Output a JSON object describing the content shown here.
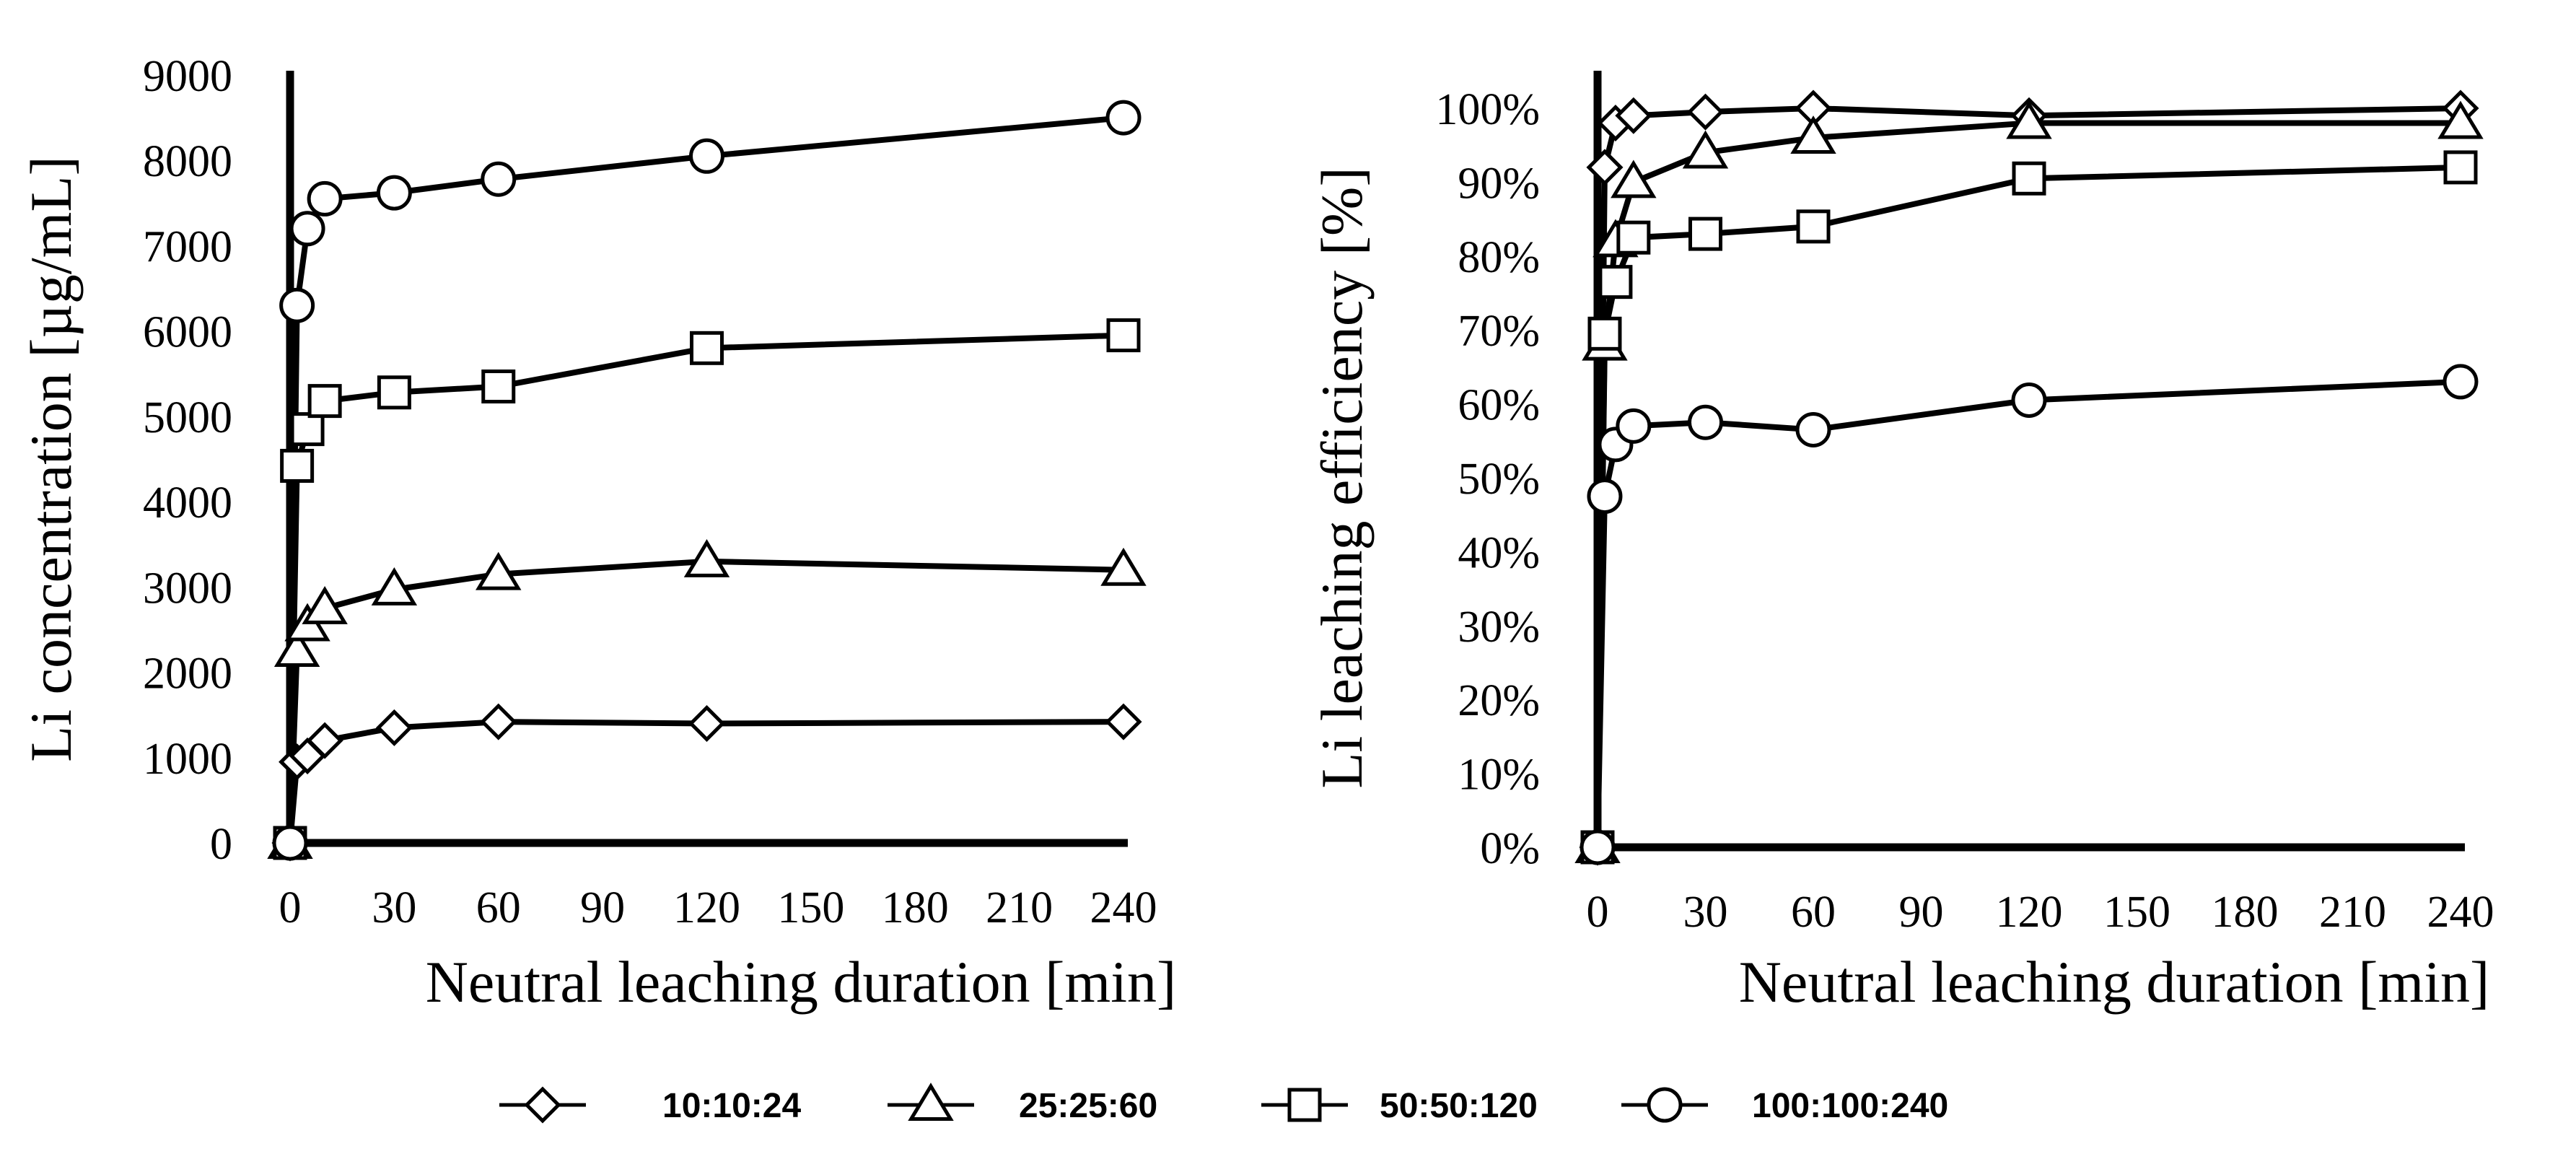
{
  "chart_data": [
    {
      "type": "line",
      "ylabel": "Li concentration [µg/mL]",
      "xlabel": "Neutral leaching duration [min]",
      "xlim": [
        0,
        240
      ],
      "ylim": [
        0,
        9000
      ],
      "xticks": [
        0,
        30,
        60,
        90,
        120,
        150,
        180,
        210,
        240
      ],
      "yticks": [
        0,
        1000,
        2000,
        3000,
        4000,
        5000,
        6000,
        7000,
        8000,
        9000
      ],
      "ytick_labels": [
        "0",
        "1000",
        "2000",
        "3000",
        "4000",
        "5000",
        "6000",
        "7000",
        "8000",
        "9000"
      ],
      "x": [
        0,
        2,
        5,
        10,
        30,
        60,
        120,
        240
      ],
      "series": [
        {
          "name": "10:10:24",
          "marker": "diamond",
          "values": [
            0,
            950,
            1020,
            1200,
            1350,
            1420,
            1400,
            1420
          ]
        },
        {
          "name": "25:25:60",
          "marker": "triangle",
          "values": [
            0,
            2250,
            2550,
            2750,
            2970,
            3150,
            3300,
            3200
          ]
        },
        {
          "name": "50:50:120",
          "marker": "square",
          "values": [
            0,
            4420,
            4850,
            5180,
            5280,
            5350,
            5800,
            5950
          ]
        },
        {
          "name": "100:100:240",
          "marker": "circle",
          "values": [
            0,
            6300,
            7200,
            7550,
            7620,
            7780,
            8050,
            8500
          ]
        }
      ]
    },
    {
      "type": "line",
      "ylabel": "Li leaching efficiency [%]",
      "xlabel": "Neutral leaching duration [min]",
      "xlim": [
        0,
        240
      ],
      "ylim": [
        0,
        100
      ],
      "xticks": [
        0,
        30,
        60,
        90,
        120,
        150,
        180,
        210,
        240
      ],
      "yticks": [
        0,
        10,
        20,
        30,
        40,
        50,
        60,
        70,
        80,
        90,
        100
      ],
      "ytick_labels": [
        "0%",
        "10%",
        "20%",
        "30%",
        "40%",
        "50%",
        "60%",
        "70%",
        "80%",
        "90%",
        "100%"
      ],
      "x": [
        0,
        2,
        5,
        10,
        30,
        60,
        120,
        240
      ],
      "series": [
        {
          "name": "10:10:24",
          "marker": "diamond",
          "values": [
            0,
            92,
            98,
            99,
            99.5,
            100,
            99,
            100
          ]
        },
        {
          "name": "25:25:60",
          "marker": "triangle",
          "values": [
            0,
            68,
            82,
            90,
            94,
            96,
            98,
            98
          ]
        },
        {
          "name": "50:50:120",
          "marker": "square",
          "values": [
            0,
            69.5,
            76.5,
            82.5,
            83,
            84,
            90.5,
            92
          ]
        },
        {
          "name": "100:100:240",
          "marker": "circle",
          "values": [
            0,
            47.5,
            54.5,
            57,
            57.5,
            56.5,
            60.5,
            63
          ]
        }
      ]
    }
  ],
  "legend": [
    {
      "label": "10:10:24",
      "marker": "diamond"
    },
    {
      "label": "25:25:60",
      "marker": "triangle"
    },
    {
      "label": "50:50:120",
      "marker": "square"
    },
    {
      "label": "100:100:240",
      "marker": "circle"
    }
  ]
}
